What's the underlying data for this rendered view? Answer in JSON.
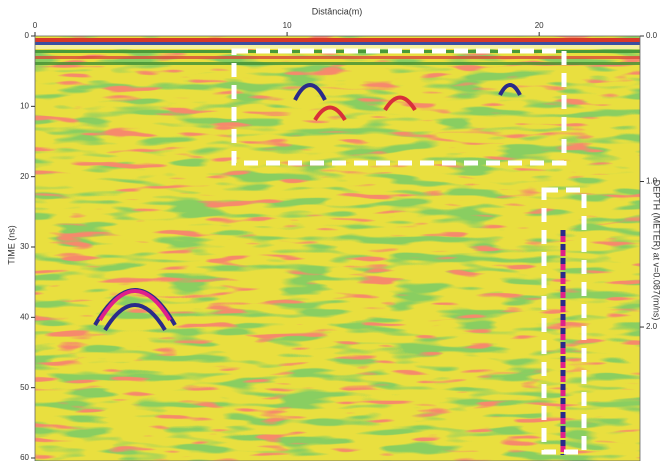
{
  "chart_data": {
    "type": "radargram",
    "x_label": "Distância(m)",
    "y_label": "TIME (ns)",
    "y2_label": "DEPTH (METER) at v=0.087(m/ns)",
    "xlim": [
      0,
      24
    ],
    "xticks": [
      0,
      10,
      20
    ],
    "ylim": [
      0,
      60
    ],
    "yticks": [
      0,
      10,
      20,
      30,
      40,
      50,
      60
    ],
    "y2lim": [
      0,
      2.9
    ],
    "y2ticks": [
      {
        "value": 0,
        "label": "0.0"
      },
      {
        "value": 1,
        "label": "1.0"
      },
      {
        "value": 2,
        "label": "2.0"
      }
    ]
  }
}
